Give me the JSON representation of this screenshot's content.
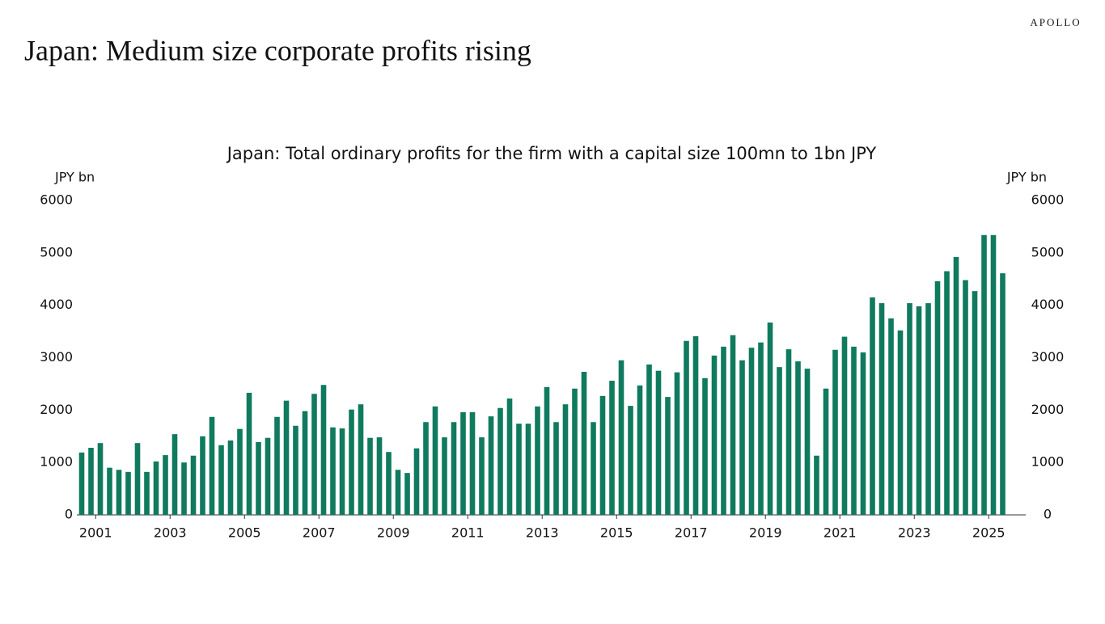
{
  "brand": "APOLLO",
  "header": {
    "title": "Japan: Medium size corporate profits rising"
  },
  "chart_data": {
    "type": "bar",
    "title": "Japan: Total ordinary profits for the firm with a capital size 100mn to 1bn JPY",
    "y_label": "JPY bn",
    "y2_label": "JPY bn",
    "color": "#0f7a5e",
    "categories": [
      null,
      "2001",
      null,
      null,
      null,
      null,
      null,
      null,
      null,
      "2003",
      null,
      null,
      null,
      null,
      null,
      null,
      null,
      "2005",
      null,
      null,
      null,
      null,
      null,
      null,
      null,
      "2007",
      null,
      null,
      null,
      null,
      null,
      null,
      null,
      "2009",
      null,
      null,
      null,
      null,
      null,
      null,
      null,
      "2011",
      null,
      null,
      null,
      null,
      null,
      null,
      null,
      "2013",
      null,
      null,
      null,
      null,
      null,
      null,
      null,
      "2015",
      null,
      null,
      null,
      null,
      null,
      null,
      null,
      "2017",
      null,
      null,
      null,
      null,
      null,
      null,
      null,
      "2019",
      null,
      null,
      null,
      null,
      null,
      null,
      null,
      "2021",
      null,
      null,
      null,
      null,
      null,
      null,
      null,
      "2023",
      null,
      null,
      null,
      null,
      null,
      null,
      null,
      "2025",
      null,
      null
    ],
    "values": [
      1190,
      1280,
      1370,
      900,
      860,
      820,
      1370,
      820,
      1020,
      1140,
      1540,
      1000,
      1130,
      1500,
      1870,
      1330,
      1420,
      1640,
      2330,
      1390,
      1470,
      1870,
      2180,
      1700,
      1980,
      2310,
      2480,
      1670,
      1650,
      2010,
      2110,
      1470,
      1480,
      1200,
      860,
      800,
      1270,
      1770,
      2070,
      1480,
      1770,
      1960,
      1960,
      1480,
      1880,
      2040,
      2220,
      1740,
      1740,
      2070,
      2440,
      1770,
      2110,
      2410,
      2730,
      1770,
      2270,
      2560,
      2950,
      2080,
      2470,
      2870,
      2750,
      2250,
      2720,
      3320,
      3410,
      2610,
      3040,
      3210,
      3430,
      2950,
      3190,
      3290,
      3670,
      2820,
      3160,
      2930,
      2790,
      1130,
      2410,
      3150,
      3400,
      3210,
      3100,
      4150,
      4040,
      3750,
      3520,
      4040,
      3980,
      4040,
      4460,
      4650,
      4920,
      4480,
      4270,
      5340,
      5340,
      4610
    ],
    "ylim": [
      0,
      6000
    ],
    "yticks": [
      0,
      1000,
      2000,
      3000,
      4000,
      5000,
      6000
    ],
    "y2lim": [
      0,
      6000
    ],
    "y2ticks": [
      0,
      1000,
      2000,
      3000,
      4000,
      5000,
      6000
    ]
  }
}
